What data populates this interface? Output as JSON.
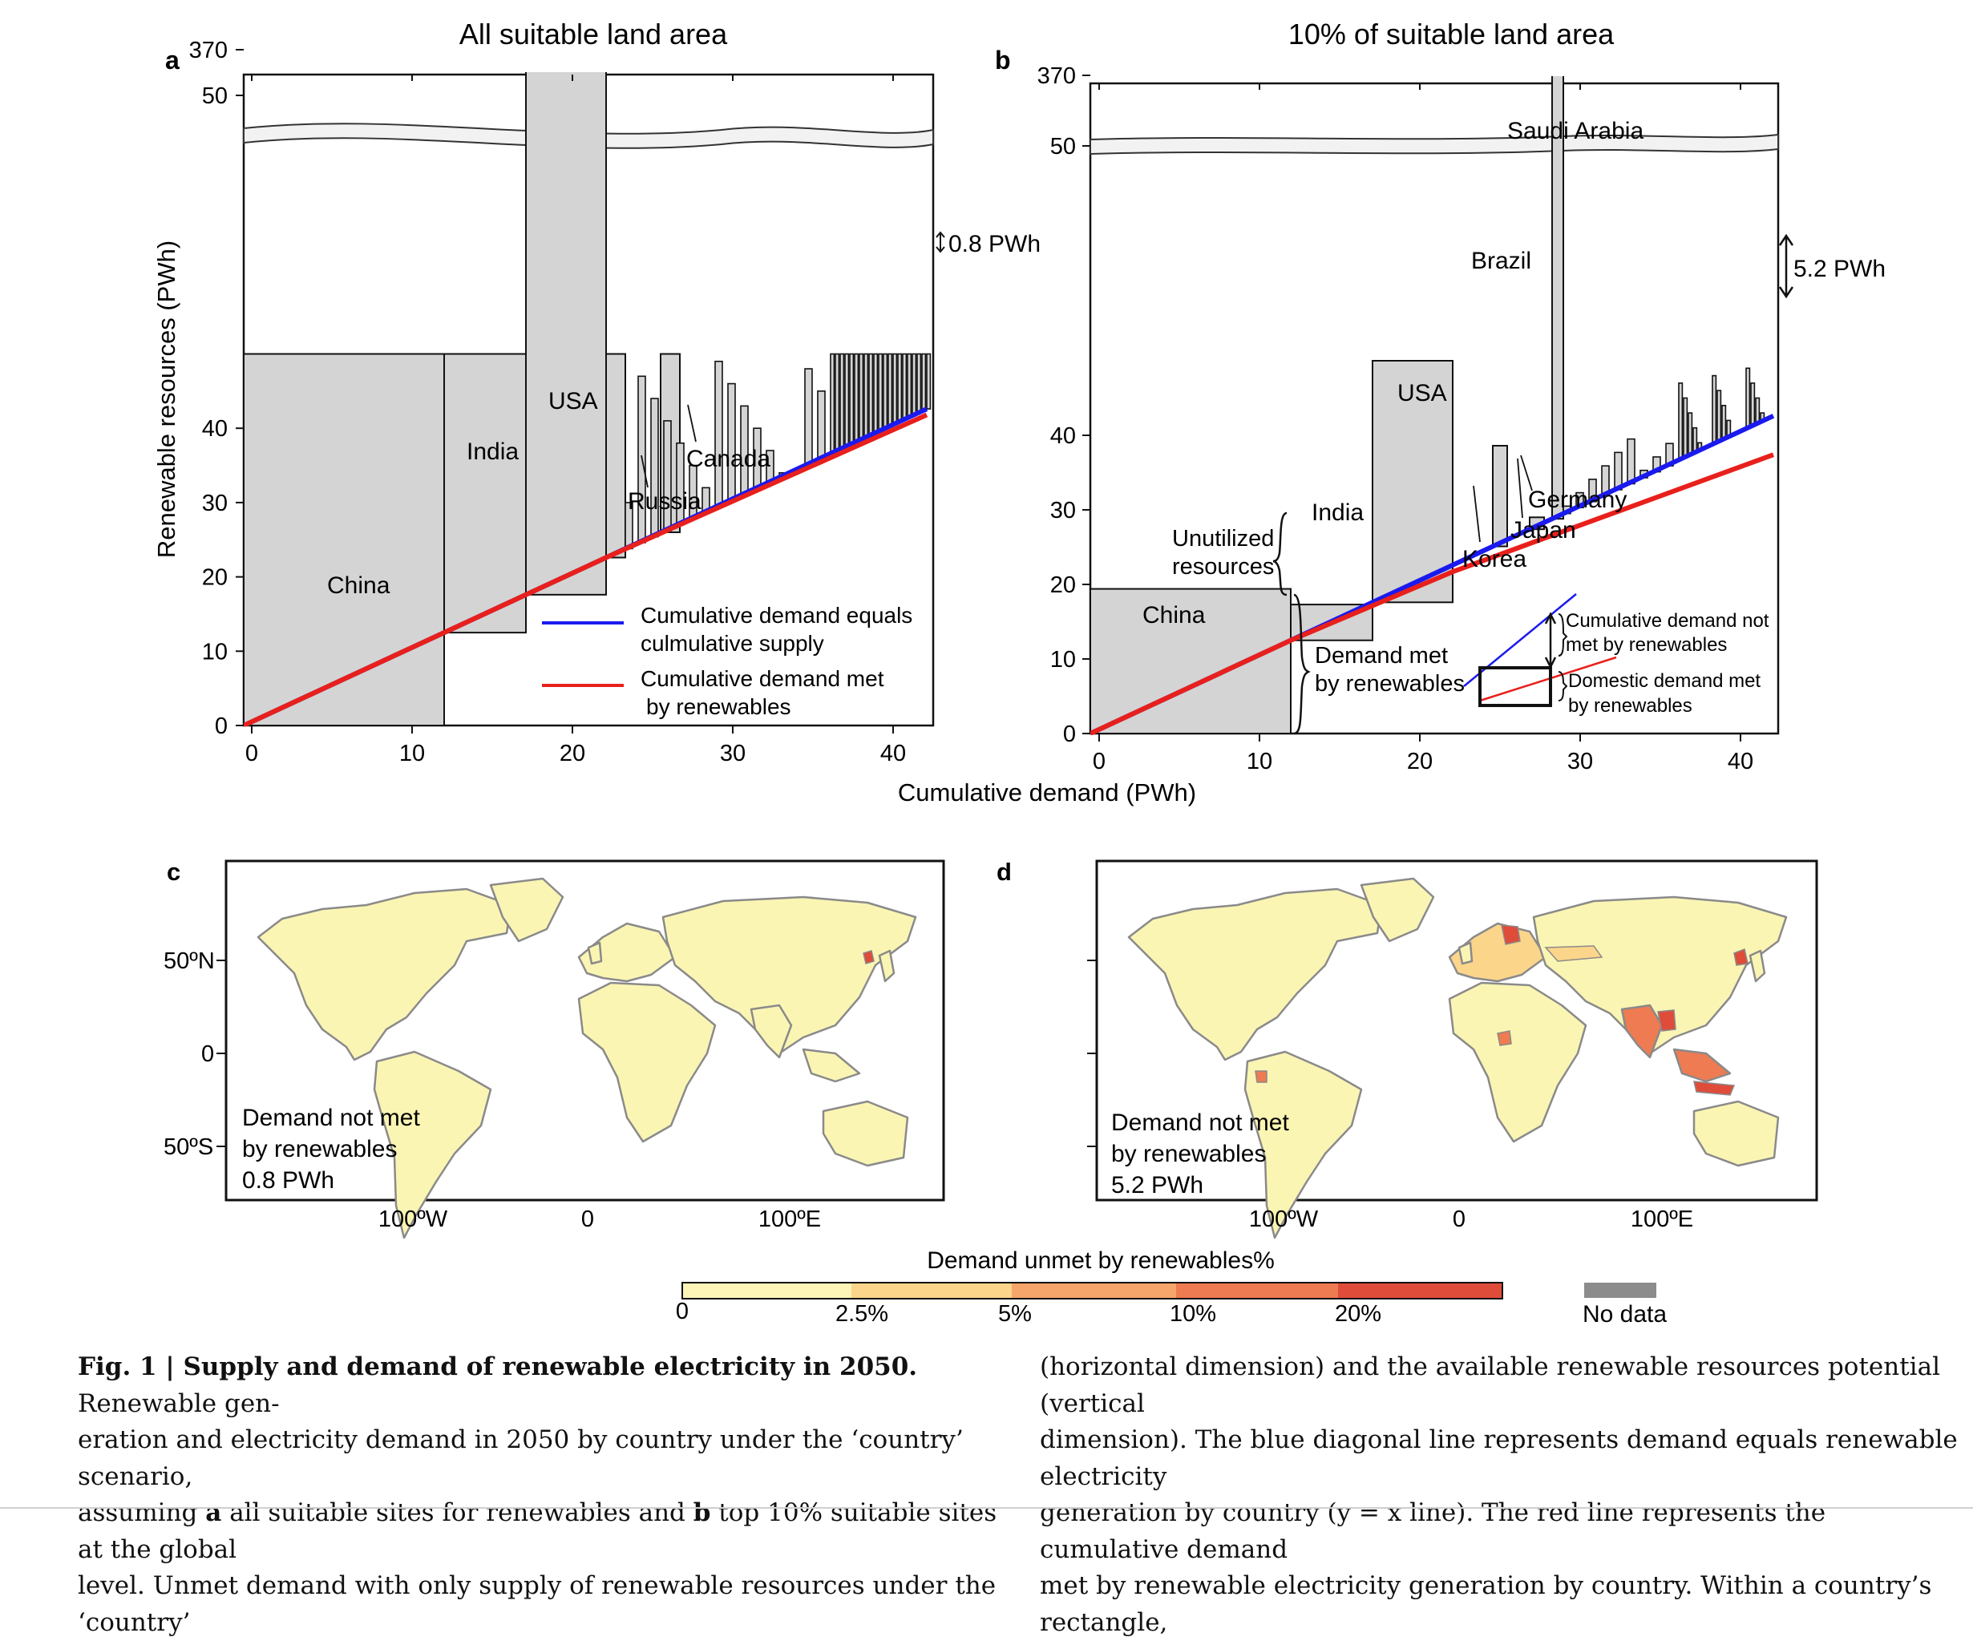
{
  "figure": {
    "panel_a": {
      "letter": "a",
      "title": "All suitable land area",
      "ytick_labels": [
        "0",
        "10",
        "20",
        "30",
        "40",
        "50",
        "370"
      ],
      "xtick_labels": [
        "0",
        "10",
        "20",
        "30",
        "40"
      ],
      "ylabel": "Renewable resources (PWh)",
      "countries": [
        "China",
        "India",
        "USA",
        "Russia",
        "Canada"
      ],
      "gap_label": "0.8 PWh",
      "legend": {
        "blue": "Cumulative demand equals",
        "blue2": "culmulative supply",
        "red": "Cumulative demand met",
        "red2": "by renewables"
      }
    },
    "panel_b": {
      "letter": "b",
      "title": "10% of suitable land area",
      "ytick_labels": [
        "0",
        "10",
        "20",
        "30",
        "40",
        "50",
        "370"
      ],
      "xtick_labels": [
        "0",
        "10",
        "20",
        "30",
        "40"
      ],
      "countries": [
        "China",
        "India",
        "USA",
        "Saudi Arabia",
        "Brazil",
        "Germany",
        "Japan",
        "Korea"
      ],
      "gap_label": "5.2 PWh",
      "unutilized": [
        "Unutilized",
        "resources"
      ],
      "demand_met": [
        "Demand met",
        "by renewables"
      ],
      "inset": {
        "not_met": [
          "Cumulative demand not",
          "met by renewables"
        ],
        "domestic": [
          "Domestic demand met",
          "by renewables"
        ]
      }
    },
    "shared_xlabel": "Cumulative demand (PWh)",
    "panel_c": {
      "letter": "c",
      "lat_labels": [
        "50ºN",
        "0",
        "50ºS"
      ],
      "lon_labels": [
        "100ºW",
        "0",
        "100ºE"
      ],
      "note": [
        "Demand not met",
        "by renewables",
        "0.8 PWh"
      ]
    },
    "panel_d": {
      "letter": "d",
      "lon_labels": [
        "100ºW",
        "0",
        "100ºE"
      ],
      "note": [
        "Demand not met",
        "by renewables",
        "5.2 PWh"
      ]
    },
    "colorbar": {
      "title": "Demand unmet by renewables%",
      "tick_labels": [
        "0",
        "2.5%",
        "5%",
        "10%",
        "20%"
      ],
      "colors": [
        "#fdf5b8",
        "#fbd58a",
        "#f6a66a",
        "#ee7b52",
        "#df4c3a"
      ],
      "nodata_label": "No data",
      "nodata_color": "#8c8c8c"
    }
  },
  "chart_data": [
    {
      "type": "bar",
      "title": "All suitable land area",
      "xlabel": "Cumulative demand (PWh)",
      "ylabel": "Renewable resources (PWh)",
      "xlim": [
        0,
        43
      ],
      "ylim": [
        0,
        370
      ],
      "y_axis_break": [
        50,
        370
      ],
      "bars": [
        {
          "country": "China",
          "x0": 0,
          "x1": 12.5,
          "resource": 50
        },
        {
          "country": "India",
          "x0": 12.5,
          "x1": 17.6,
          "resource": 50
        },
        {
          "country": "USA",
          "x0": 17.6,
          "x1": 22.6,
          "resource": 370
        },
        {
          "country": "Russia",
          "x0": 22.6,
          "x1": 23.8,
          "resource": 50
        },
        {
          "country": "Canada",
          "x0": 26.0,
          "x1": 27.2,
          "resource": 50
        }
      ],
      "series": [
        {
          "name": "Cumulative demand equals culmulative supply",
          "color": "#1a1aee",
          "x": [
            0,
            42.6
          ],
          "y": [
            0,
            42.6
          ]
        },
        {
          "name": "Cumulative demand met by renewables",
          "color": "#e8201c",
          "x": [
            0,
            22.6,
            42.6
          ],
          "y": [
            0,
            22.6,
            41.8
          ]
        }
      ],
      "unmet_gap_pwh": 0.8
    },
    {
      "type": "bar",
      "title": "10% of suitable land area",
      "xlabel": "Cumulative demand (PWh)",
      "xlim": [
        0,
        43
      ],
      "ylim": [
        0,
        370
      ],
      "y_axis_break": [
        50,
        370
      ],
      "bars": [
        {
          "country": "China",
          "x0": 0,
          "x1": 12.5,
          "resource": 19.4
        },
        {
          "country": "India",
          "x0": 12.5,
          "x1": 17.6,
          "resource": 17.3
        },
        {
          "country": "USA",
          "x0": 17.6,
          "x1": 22.6,
          "resource": 50
        },
        {
          "country": "Korea",
          "x0": 23.6,
          "x1": 24.7,
          "resource": 23.0
        },
        {
          "country": "Brazil",
          "x0": 25.1,
          "x1": 26.0,
          "resource": 38.6
        },
        {
          "country": "Japan",
          "x0": 26.0,
          "x1": 27.4,
          "resource": 25.2
        },
        {
          "country": "Germany",
          "x0": 27.4,
          "x1": 28.3,
          "resource": 29.0
        },
        {
          "country": "Saudi Arabia",
          "x0": 28.8,
          "x1": 29.5,
          "resource": 370
        }
      ],
      "series": [
        {
          "name": "Cumulative demand equals culmulative supply",
          "color": "#1a1aee",
          "x": [
            0,
            42.6
          ],
          "y": [
            0,
            42.6
          ]
        },
        {
          "name": "Cumulative demand met by renewables",
          "color": "#e8201c",
          "x": [
            0,
            12.5,
            22.6,
            42.6
          ],
          "y": [
            0,
            12.5,
            21.7,
            37.4
          ]
        }
      ],
      "unmet_gap_pwh": 5.2
    }
  ]
}
